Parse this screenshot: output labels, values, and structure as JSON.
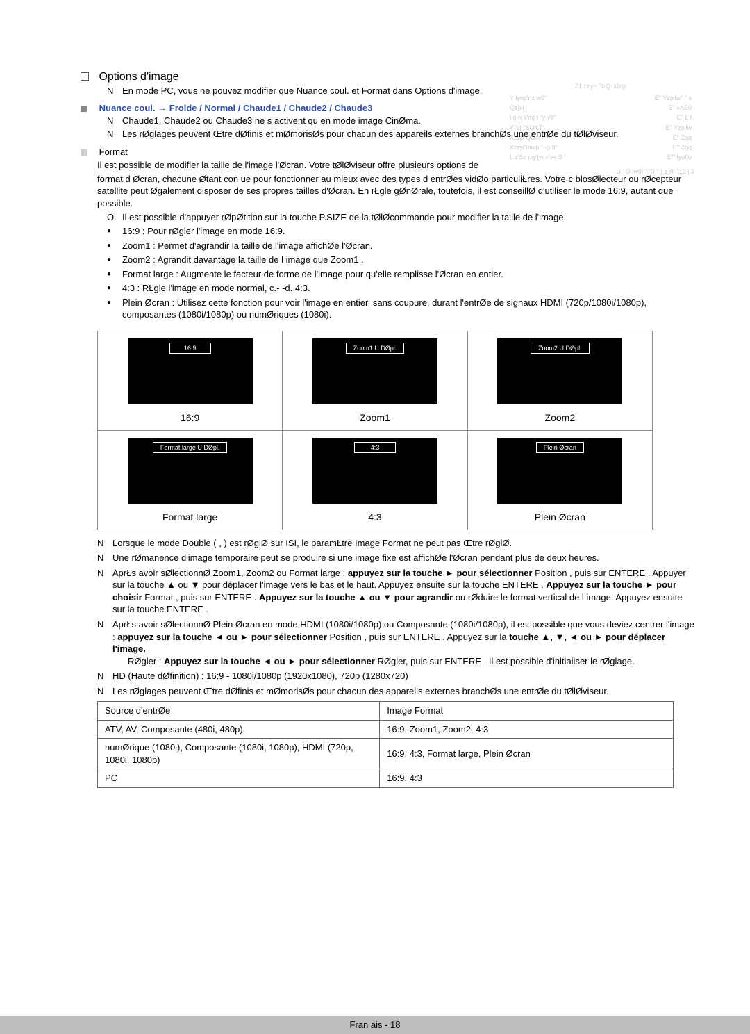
{
  "page": {
    "options_title": "Options d'image",
    "note_pc_mode": "En mode PC, vous ne pouvez modifier que Nuance coul.  et Format  dans Options d'image.",
    "nuance_heading": "Nuance coul. → Froide / Normal / Chaude1 / Chaude2 / Chaude3",
    "nuance_note1": "Chaude1, Chaude2  ou Chaude3  ne s activent qu en mode image CinØma.",
    "nuance_note2": "Les rØglages peuvent Œtre dØfinis et mØmorisØs pour chacun des appareils externes branchØs   une entrØe du tØlØviseur.",
    "format_heading": "Format",
    "format_para1": "Il est possible de modifier la taille de l'image   l'Øcran. Votre tØlØviseur offre plusieurs options de",
    "format_para2": "format d Øcran, chacune Øtant con ue pour fonctionner au mieux avec des types d entrØes vidØo particuliŁres. Votre c blosØlecteur ou rØcepteur satellite peut Øgalement disposer de ses propres tailles d'Øcran. En rŁgle gØnØrale, toutefois, il est conseillØ d'utiliser le mode 16:9, autant que possible.",
    "o_item": "Il est possible d'appuyer   rØpØtition sur la touche P.SIZE de la tØlØcommande pour modifier la taille de l'image.",
    "b1": "16:9 : Pour rØgler l'image en mode 16:9.",
    "b2": "Zoom1  : Permet d'agrandir la taille de l'image affichØe   l'Øcran.",
    "b3": "Zoom2  : Agrandit davantage la taille de l image que Zoom1 .",
    "b4": "Format large  : Augmente le facteur de forme de l'image pour qu'elle remplisse l'Øcran en entier.",
    "b5": "4:3 : RŁgle l'image en mode normal, c.- -d. 4:3.",
    "b6": "Plein Øcran  : Utilisez cette fonction pour voir l'image en entier, sans coupure, durant l'entrØe de signaux HDMI (720p/1080i/1080p), composantes (1080i/1080p) ou numØriques (1080i)."
  },
  "osd": {
    "title": "Zł tzy~\"bQtxlrp",
    "rows": [
      [
        "Y łynp'nz w9\"",
        "E\" Yz|xlw\"   \"    s"
      ],
      [
        "Qz]xl '",
        "E\" »AE0"
      ],
      [
        "ł o n 9'm| t \"y v9\"",
        "E\" L  t"
      ],
      [
        "Y 'y| \"SOXT\"",
        "E\" Yz|xlw"
      ],
      [
        "Xzzp\"Qtwx\"",
        "E\" Zqq"
      ],
      [
        "Xzzp\"mwp \"~p 9\"",
        "E\" Zqq"
      ],
      [
        "L  z'Sz tzy'|w »'»«.S '",
        "E\"\" łyαl|α"
      ]
    ],
    "footer": "U  ' O  |w9| \"\"T| \" } z R' \"12 | 3"
  },
  "aspects": {
    "items": [
      {
        "badge": "16:9",
        "label": "16:9"
      },
      {
        "badge": "Zoom1 U  DØpl.",
        "label": "Zoom1"
      },
      {
        "badge": "Zoom2 U  DØpl.",
        "label": "Zoom2"
      },
      {
        "badge": "Format large  U  DØpl.",
        "label": "Format large"
      },
      {
        "badge": "4:3",
        "label": "4:3"
      },
      {
        "badge": "Plein Øcran",
        "label": "Plein Øcran"
      }
    ]
  },
  "notes2": {
    "n1": "Lorsque le mode Double (     ,       ) est rØglØ sur ISI, le paramŁtre Image Format ne peut pas Œtre rØglØ.",
    "n2": "Une rØmanence d'image temporaire peut se produire si une image fixe est affichØe   l'Øcran pendant plus de deux heures.",
    "n3_a": "AprŁs avoir sØlectionnØ Zoom1, Zoom2  ou Format large  : ",
    "n3_b": "appuyez sur la touche ► pour sélectionner",
    "n3_c": " Position , puis sur ENTERE   . Appuyer sur la touche ▲ ou ▼ pour déplacer l'image vers le bas et le haut. Appuyez ensuite sur la touche ENTERE   . ",
    "n3_d": "Appuyez sur la touche ► pour choisir",
    "n3_e": " Format , puis sur ENTERE   . ",
    "n3_f": "Appuyez sur la touche ▲ ou ▼ pour agrandir",
    "n3_g": " ou rØduire le format vertical de l image. Appuyez ensuite sur la touche ENTERE   .",
    "n4_a": "AprŁs avoir sØlectionnØ Plein Øcran  en mode HDMI (1080i/1080p) ou Composante (1080i/1080p), il est possible que vous deviez centrer l'image : ",
    "n4_b": "appuyez sur la touche ◄ ou ► pour sélectionner",
    "n4_c": " Position , puis sur ENTERE   . Appuyez sur la ",
    "n4_d": "touche ▲, ▼, ◄ ou ► pour déplacer l'image.",
    "n4_sub_a": "RØgler : ",
    "n4_sub_b": "Appuyez sur la touche ◄ ou ► pour sélectionner",
    "n4_sub_c": " RØgler, puis sur ENTERE   . Il est possible d'initialiser le rØglage.",
    "n5": "HD (Haute dØfinition) : 16:9 - 1080i/1080p (1920x1080), 720p (1280x720)",
    "n6": "Les rØglages peuvent Œtre dØfinis et mØmorisØs pour chacun des appareils externes branchØs   une entrØe du tØlØviseur."
  },
  "table": {
    "h1": "Source d'entrØe",
    "h2": "Image Format",
    "r1c1": "ATV, AV, Composante (480i, 480p)",
    "r1c2": "16:9, Zoom1, Zoom2, 4:3",
    "r2c1": "numØrique (1080i), Composante (1080i, 1080p), HDMI (720p, 1080i, 1080p)",
    "r2c2": "16:9, 4:3, Format large, Plein Øcran",
    "r3c1": "PC",
    "r3c2": "16:9, 4:3"
  },
  "footer": "Fran ais - 18"
}
